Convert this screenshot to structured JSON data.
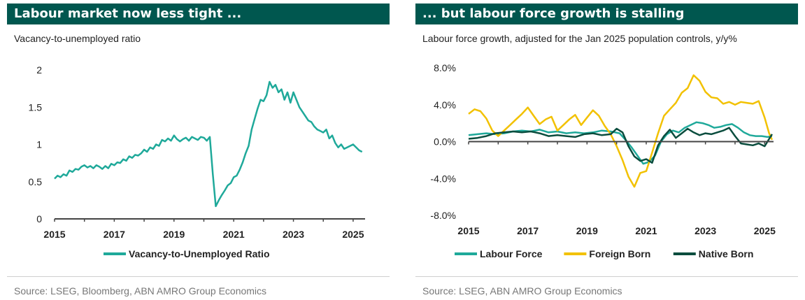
{
  "colors": {
    "header": "#00574F",
    "teal": "#1FA99A",
    "yellow": "#F2C100",
    "dark": "#0B4D3E",
    "axis": "#444444"
  },
  "left": {
    "title": "Labour market now less tight ...",
    "subtitle": "Vacancy-to-unemployed ratio",
    "source": "Source: LSEG, Bloomberg, ABN AMRO Group Economics"
  },
  "right": {
    "title": "... but labour force growth is stalling",
    "subtitle": "Labour force growth, adjusted for the Jan 2025 population controls, y/y%",
    "source": "Source: LSEG, ABN AMRO Group Economics"
  },
  "chart_data": [
    {
      "type": "line",
      "title": "Labour market now less tight ...",
      "subtitle": "Vacancy-to-unemployed ratio",
      "xlim": [
        2015,
        2025.4
      ],
      "ylim": [
        0,
        2
      ],
      "x_ticks": [
        2015,
        2017,
        2019,
        2021,
        2023,
        2025
      ],
      "y_ticks": [
        0,
        0.5,
        1,
        1.5,
        2
      ],
      "y_tick_labels": [
        "0",
        "0.5",
        "1",
        "1.5",
        "2"
      ],
      "legend_position": "bottom",
      "grid": false,
      "series": [
        {
          "name": "Vacancy-to-Unemployed Ratio",
          "color": "#1FA99A",
          "x": [
            2015.0,
            2015.1,
            2015.2,
            2015.3,
            2015.4,
            2015.5,
            2015.6,
            2015.7,
            2015.8,
            2015.9,
            2016.0,
            2016.1,
            2016.2,
            2016.3,
            2016.4,
            2016.5,
            2016.6,
            2016.7,
            2016.8,
            2016.9,
            2017.0,
            2017.1,
            2017.2,
            2017.3,
            2017.4,
            2017.5,
            2017.6,
            2017.7,
            2017.8,
            2017.9,
            2018.0,
            2018.1,
            2018.2,
            2018.3,
            2018.4,
            2018.5,
            2018.6,
            2018.7,
            2018.8,
            2018.9,
            2019.0,
            2019.1,
            2019.2,
            2019.3,
            2019.4,
            2019.5,
            2019.6,
            2019.7,
            2019.8,
            2019.9,
            2020.0,
            2020.1,
            2020.2,
            2020.3,
            2020.4,
            2020.5,
            2020.6,
            2020.7,
            2020.8,
            2020.9,
            2021.0,
            2021.1,
            2021.2,
            2021.3,
            2021.4,
            2021.5,
            2021.6,
            2021.7,
            2021.8,
            2021.9,
            2022.0,
            2022.1,
            2022.2,
            2022.3,
            2022.4,
            2022.5,
            2022.6,
            2022.7,
            2022.8,
            2022.9,
            2023.0,
            2023.1,
            2023.2,
            2023.3,
            2023.4,
            2023.5,
            2023.6,
            2023.7,
            2023.8,
            2023.9,
            2024.0,
            2024.1,
            2024.2,
            2024.3,
            2024.4,
            2024.5,
            2024.6,
            2024.7,
            2024.8,
            2024.9,
            2025.0,
            2025.1,
            2025.2,
            2025.3
          ],
          "values": [
            0.54,
            0.58,
            0.56,
            0.6,
            0.58,
            0.65,
            0.63,
            0.67,
            0.66,
            0.7,
            0.72,
            0.69,
            0.71,
            0.68,
            0.72,
            0.7,
            0.67,
            0.71,
            0.68,
            0.74,
            0.72,
            0.76,
            0.75,
            0.8,
            0.78,
            0.84,
            0.82,
            0.86,
            0.85,
            0.88,
            0.93,
            0.9,
            0.96,
            0.94,
            1.0,
            0.98,
            1.06,
            1.04,
            1.08,
            1.05,
            1.12,
            1.07,
            1.04,
            1.07,
            1.09,
            1.05,
            1.1,
            1.08,
            1.06,
            1.1,
            1.09,
            1.05,
            1.1,
            0.6,
            0.17,
            0.25,
            0.32,
            0.38,
            0.45,
            0.48,
            0.56,
            0.58,
            0.66,
            0.76,
            0.88,
            0.98,
            1.2,
            1.34,
            1.48,
            1.6,
            1.58,
            1.66,
            1.84,
            1.76,
            1.8,
            1.7,
            1.74,
            1.6,
            1.7,
            1.56,
            1.7,
            1.6,
            1.5,
            1.44,
            1.38,
            1.32,
            1.3,
            1.24,
            1.2,
            1.18,
            1.16,
            1.2,
            1.08,
            1.12,
            1.02,
            0.96,
            1.0,
            0.94,
            0.96,
            0.98,
            1.0,
            0.96,
            0.92,
            0.9
          ]
        }
      ]
    },
    {
      "type": "line",
      "title": "... but labour force growth is stalling",
      "subtitle": "Labour force growth, adjusted for the Jan 2025 population controls, y/y%",
      "xlim": [
        2015,
        2025.3
      ],
      "ylim": [
        -8,
        8
      ],
      "x_ticks": [
        2015,
        2017,
        2019,
        2021,
        2023,
        2025
      ],
      "y_ticks": [
        -8,
        -4,
        0,
        4,
        8
      ],
      "y_tick_labels": [
        "-8.0%",
        "-4.0%",
        "0.0%",
        "4.0%",
        "8.0%"
      ],
      "legend_position": "bottom",
      "grid": false,
      "series": [
        {
          "name": "Labour Force",
          "color": "#1FA99A",
          "x": [
            2015.0,
            2015.3,
            2015.6,
            2015.9,
            2016.2,
            2016.5,
            2016.8,
            2017.1,
            2017.4,
            2017.7,
            2018.0,
            2018.3,
            2018.6,
            2018.9,
            2019.2,
            2019.5,
            2019.8,
            2020.1,
            2020.3,
            2020.5,
            2020.7,
            2020.9,
            2021.1,
            2021.3,
            2021.5,
            2021.7,
            2021.9,
            2022.1,
            2022.3,
            2022.5,
            2022.7,
            2022.9,
            2023.1,
            2023.3,
            2023.5,
            2023.7,
            2023.9,
            2024.1,
            2024.3,
            2024.5,
            2024.7,
            2024.9,
            2025.1,
            2025.25
          ],
          "values": [
            0.7,
            0.8,
            0.9,
            0.8,
            0.9,
            1.1,
            1.2,
            1.1,
            1.3,
            1.0,
            1.1,
            0.9,
            1.0,
            0.9,
            1.0,
            1.2,
            1.1,
            0.9,
            0.2,
            -0.6,
            -1.5,
            -2.4,
            -2.2,
            -1.5,
            0.0,
            0.8,
            1.2,
            1.0,
            1.5,
            1.8,
            2.1,
            2.0,
            1.8,
            1.5,
            1.6,
            1.8,
            1.9,
            1.5,
            1.0,
            0.7,
            0.6,
            0.6,
            0.5,
            0.6
          ]
        },
        {
          "name": "Foreign Born",
          "color": "#F2C100",
          "x": [
            2015.0,
            2015.2,
            2015.4,
            2015.6,
            2015.8,
            2016.0,
            2016.2,
            2016.4,
            2016.6,
            2016.8,
            2017.0,
            2017.2,
            2017.4,
            2017.6,
            2017.8,
            2018.0,
            2018.2,
            2018.4,
            2018.6,
            2018.8,
            2019.0,
            2019.2,
            2019.4,
            2019.6,
            2019.8,
            2020.0,
            2020.2,
            2020.4,
            2020.6,
            2020.8,
            2021.0,
            2021.2,
            2021.4,
            2021.6,
            2021.8,
            2022.0,
            2022.2,
            2022.4,
            2022.6,
            2022.8,
            2023.0,
            2023.2,
            2023.4,
            2023.6,
            2023.8,
            2024.0,
            2024.2,
            2024.4,
            2024.6,
            2024.8,
            2025.0,
            2025.15,
            2025.25
          ],
          "values": [
            3.0,
            3.5,
            3.3,
            2.5,
            1.2,
            0.6,
            1.2,
            1.8,
            2.4,
            3.0,
            3.7,
            2.8,
            1.9,
            2.4,
            2.7,
            1.2,
            1.8,
            2.4,
            2.9,
            1.8,
            2.6,
            3.4,
            2.8,
            1.7,
            0.8,
            -0.5,
            -2.0,
            -3.8,
            -4.9,
            -3.4,
            -3.2,
            -1.2,
            0.9,
            2.8,
            3.5,
            4.2,
            5.3,
            5.8,
            7.2,
            6.6,
            5.4,
            4.8,
            4.7,
            4.1,
            4.3,
            4.0,
            4.3,
            4.2,
            4.1,
            4.4,
            2.6,
            0.9,
            0.2
          ]
        },
        {
          "name": "Native Born",
          "color": "#0B4D3E",
          "x": [
            2015.0,
            2015.3,
            2015.6,
            2015.9,
            2016.2,
            2016.5,
            2016.8,
            2017.1,
            2017.4,
            2017.7,
            2018.0,
            2018.3,
            2018.6,
            2018.9,
            2019.2,
            2019.5,
            2019.8,
            2020.0,
            2020.2,
            2020.4,
            2020.6,
            2020.8,
            2021.0,
            2021.2,
            2021.4,
            2021.6,
            2021.8,
            2022.0,
            2022.2,
            2022.4,
            2022.6,
            2022.8,
            2023.0,
            2023.2,
            2023.4,
            2023.6,
            2023.8,
            2024.0,
            2024.2,
            2024.4,
            2024.6,
            2024.8,
            2025.0,
            2025.25
          ],
          "values": [
            0.3,
            0.4,
            0.6,
            0.9,
            1.0,
            1.1,
            1.0,
            1.1,
            0.9,
            0.6,
            0.7,
            0.6,
            0.5,
            0.8,
            0.9,
            0.7,
            0.8,
            1.4,
            1.0,
            -0.5,
            -1.6,
            -2.1,
            -1.9,
            -2.3,
            -0.4,
            0.6,
            1.3,
            0.4,
            0.9,
            1.4,
            1.0,
            0.7,
            0.9,
            0.8,
            1.0,
            1.2,
            1.5,
            0.6,
            -0.2,
            -0.3,
            -0.4,
            -0.2,
            -0.5,
            0.8
          ]
        }
      ]
    }
  ]
}
